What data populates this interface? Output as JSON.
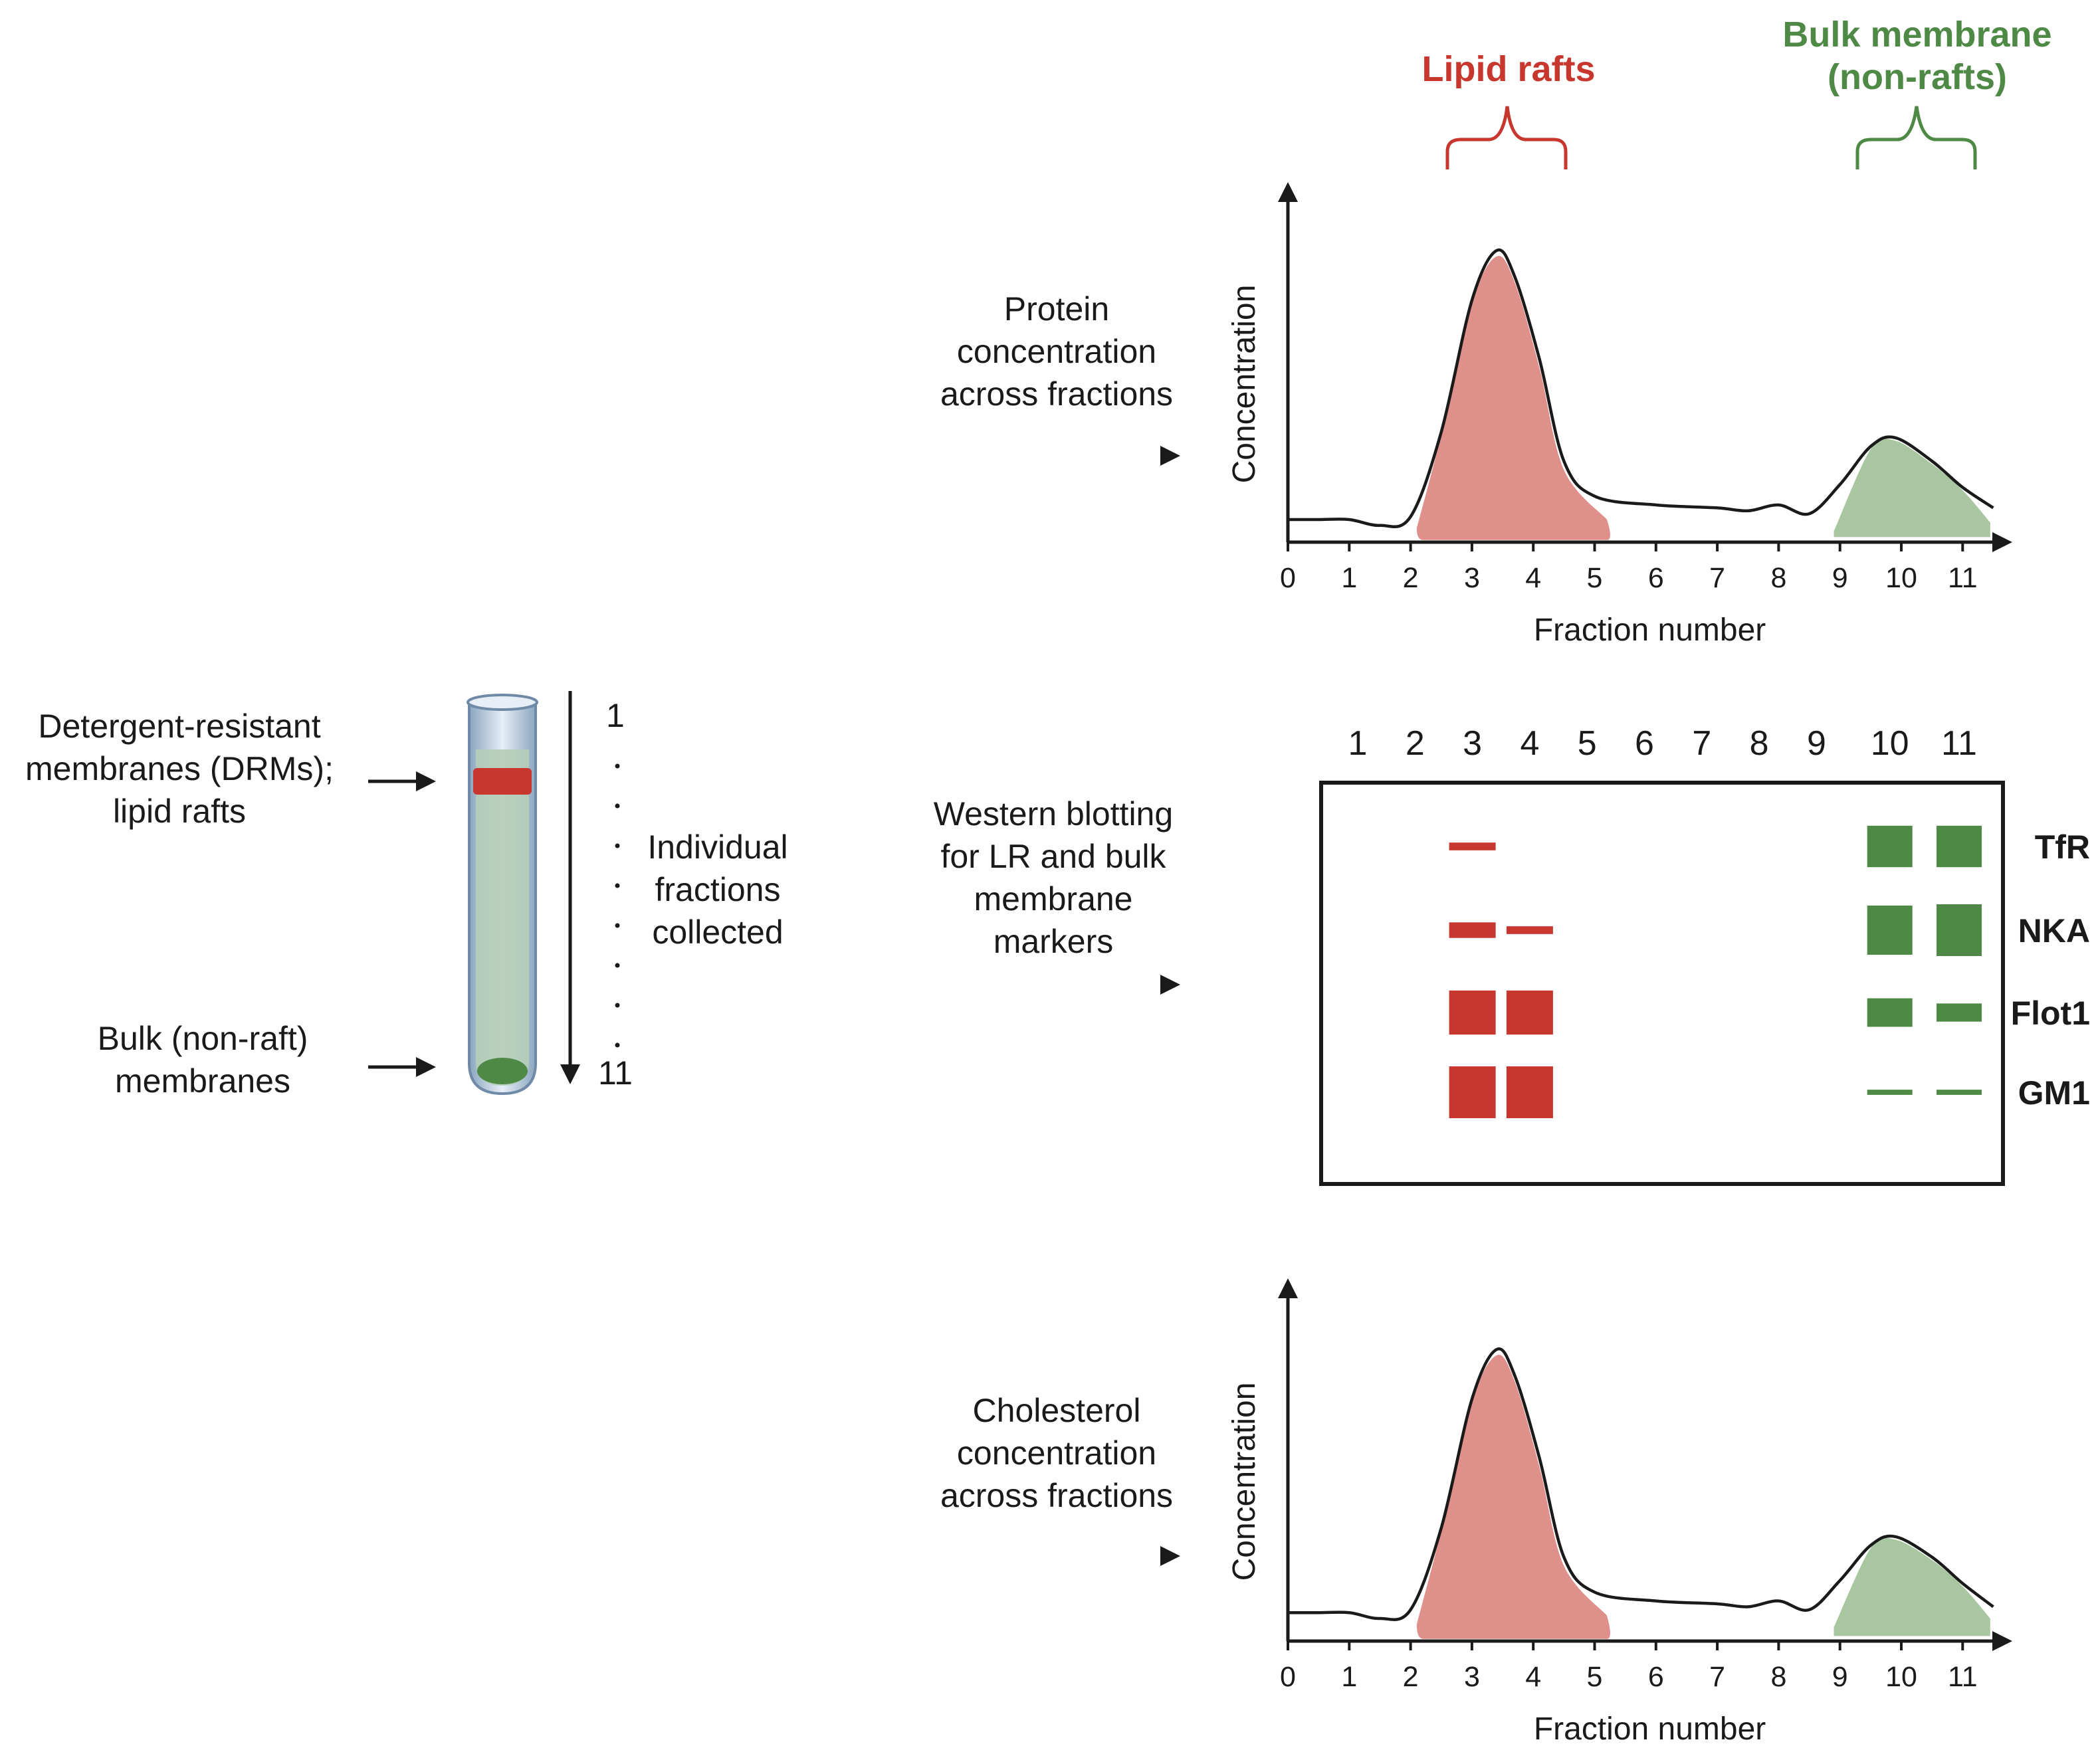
{
  "colors": {
    "raft": "#c8372e",
    "raft_fill": "#e0908a",
    "bulk": "#4e8a46",
    "bulk_fill": "#a8c7a0",
    "dark": "#1a1a1a",
    "drm_label": "#b5334c"
  },
  "headers": {
    "lipid_rafts": "Lipid rafts",
    "bulk_line1": "Bulk membrane",
    "bulk_line2": "(non-rafts)"
  },
  "tube": {
    "drm_label": [
      "Detergent-resistant",
      "membranes (DRMs);",
      "lipid rafts"
    ],
    "bulk_label": [
      "Bulk (non-raft)",
      "membranes"
    ],
    "top_number": "1",
    "bottom_number": "11",
    "collected_label": [
      "Individual",
      "fractions",
      "collected"
    ]
  },
  "steps": {
    "protein": [
      "Protein",
      "concentration",
      "across fractions"
    ],
    "western": [
      "Western blotting",
      "for LR and bulk",
      "membrane",
      "markers"
    ],
    "cholesterol": [
      "Cholesterol",
      "concentration",
      "across fractions"
    ]
  },
  "chart_data": [
    {
      "type": "area",
      "name": "protein-concentration",
      "xlabel": "Fraction number",
      "ylabel": "Concentration",
      "xlim": [
        0,
        11.5
      ],
      "ylim": [
        0,
        1
      ],
      "x_ticks": [
        "0",
        "1",
        "2",
        "3",
        "4",
        "5",
        "6",
        "7",
        "8",
        "9",
        "10",
        "11"
      ],
      "curve": [
        [
          0,
          0.05
        ],
        [
          0.5,
          0.05
        ],
        [
          1,
          0.05
        ],
        [
          1.5,
          0.03
        ],
        [
          2,
          0.06
        ],
        [
          2.5,
          0.35
        ],
        [
          3,
          0.8
        ],
        [
          3.4,
          0.97
        ],
        [
          3.7,
          0.88
        ],
        [
          4.1,
          0.6
        ],
        [
          4.5,
          0.25
        ],
        [
          5,
          0.13
        ],
        [
          6,
          0.1
        ],
        [
          7,
          0.09
        ],
        [
          7.5,
          0.08
        ],
        [
          8,
          0.1
        ],
        [
          8.5,
          0.07
        ],
        [
          9,
          0.17
        ],
        [
          9.5,
          0.3
        ],
        [
          9.9,
          0.33
        ],
        [
          10.5,
          0.25
        ],
        [
          11,
          0.16
        ],
        [
          11.5,
          0.09
        ]
      ],
      "raft_peak": [
        [
          2.1,
          0.02
        ],
        [
          2.5,
          0.34
        ],
        [
          3,
          0.79
        ],
        [
          3.4,
          0.95
        ],
        [
          3.7,
          0.86
        ],
        [
          4.1,
          0.57
        ],
        [
          4.5,
          0.22
        ],
        [
          5.2,
          0.05
        ],
        [
          5.2,
          -0.02
        ],
        [
          2.1,
          -0.02
        ]
      ],
      "bulk_peak": [
        [
          8.9,
          0.01
        ],
        [
          9.5,
          0.29
        ],
        [
          9.9,
          0.32
        ],
        [
          10.5,
          0.24
        ],
        [
          11,
          0.15
        ],
        [
          11.45,
          0.04
        ],
        [
          11.45,
          -0.01
        ],
        [
          8.9,
          -0.01
        ]
      ]
    },
    {
      "type": "area",
      "name": "cholesterol-concentration",
      "xlabel": "Fraction number",
      "ylabel": "Concentration",
      "xlim": [
        0,
        11.5
      ],
      "ylim": [
        0,
        1
      ],
      "x_ticks": [
        "0",
        "1",
        "2",
        "3",
        "4",
        "5",
        "6",
        "7",
        "8",
        "9",
        "10",
        "11"
      ],
      "curve": [
        [
          0,
          0.07
        ],
        [
          0.5,
          0.07
        ],
        [
          1,
          0.07
        ],
        [
          1.5,
          0.05
        ],
        [
          2,
          0.08
        ],
        [
          2.5,
          0.36
        ],
        [
          3,
          0.8
        ],
        [
          3.4,
          0.97
        ],
        [
          3.7,
          0.88
        ],
        [
          4.1,
          0.6
        ],
        [
          4.5,
          0.26
        ],
        [
          5,
          0.14
        ],
        [
          6,
          0.11
        ],
        [
          7,
          0.1
        ],
        [
          7.5,
          0.09
        ],
        [
          8,
          0.11
        ],
        [
          8.5,
          0.08
        ],
        [
          9,
          0.18
        ],
        [
          9.5,
          0.3
        ],
        [
          9.9,
          0.33
        ],
        [
          10.5,
          0.26
        ],
        [
          11,
          0.17
        ],
        [
          11.5,
          0.09
        ]
      ],
      "raft_peak": [
        [
          2.1,
          0.03
        ],
        [
          2.5,
          0.35
        ],
        [
          3,
          0.79
        ],
        [
          3.4,
          0.95
        ],
        [
          3.7,
          0.86
        ],
        [
          4.1,
          0.57
        ],
        [
          4.5,
          0.23
        ],
        [
          5.2,
          0.06
        ],
        [
          5.2,
          -0.02
        ],
        [
          2.1,
          -0.02
        ]
      ],
      "bulk_peak": [
        [
          8.9,
          0.02
        ],
        [
          9.5,
          0.29
        ],
        [
          9.9,
          0.32
        ],
        [
          10.5,
          0.25
        ],
        [
          11,
          0.16
        ],
        [
          11.45,
          0.05
        ],
        [
          11.45,
          -0.01
        ],
        [
          8.9,
          -0.01
        ]
      ]
    }
  ],
  "blot": {
    "lanes": [
      "1",
      "2",
      "3",
      "4",
      "5",
      "6",
      "7",
      "8",
      "9",
      "10",
      "11"
    ],
    "markers": [
      {
        "name": "TfR",
        "bands": [
          {
            "lane": 3,
            "intensity": 0.15,
            "type": "raft"
          },
          {
            "lane": 10,
            "intensity": 0.8,
            "type": "bulk"
          },
          {
            "lane": 11,
            "intensity": 0.8,
            "type": "bulk"
          }
        ]
      },
      {
        "name": "NKA",
        "bands": [
          {
            "lane": 3,
            "intensity": 0.3,
            "type": "raft"
          },
          {
            "lane": 4,
            "intensity": 0.15,
            "type": "raft"
          },
          {
            "lane": 10,
            "intensity": 0.95,
            "type": "bulk"
          },
          {
            "lane": 11,
            "intensity": 1.0,
            "type": "bulk"
          }
        ]
      },
      {
        "name": "Flot1",
        "bands": [
          {
            "lane": 3,
            "intensity": 0.85,
            "type": "raft"
          },
          {
            "lane": 4,
            "intensity": 0.85,
            "type": "raft"
          },
          {
            "lane": 10,
            "intensity": 0.55,
            "type": "bulk"
          },
          {
            "lane": 11,
            "intensity": 0.35,
            "type": "bulk"
          }
        ]
      },
      {
        "name": "GM1",
        "bands": [
          {
            "lane": 3,
            "intensity": 1.0,
            "type": "raft"
          },
          {
            "lane": 4,
            "intensity": 1.0,
            "type": "raft"
          },
          {
            "lane": 10,
            "intensity": 0.1,
            "type": "bulk"
          },
          {
            "lane": 11,
            "intensity": 0.1,
            "type": "bulk"
          }
        ]
      }
    ]
  }
}
